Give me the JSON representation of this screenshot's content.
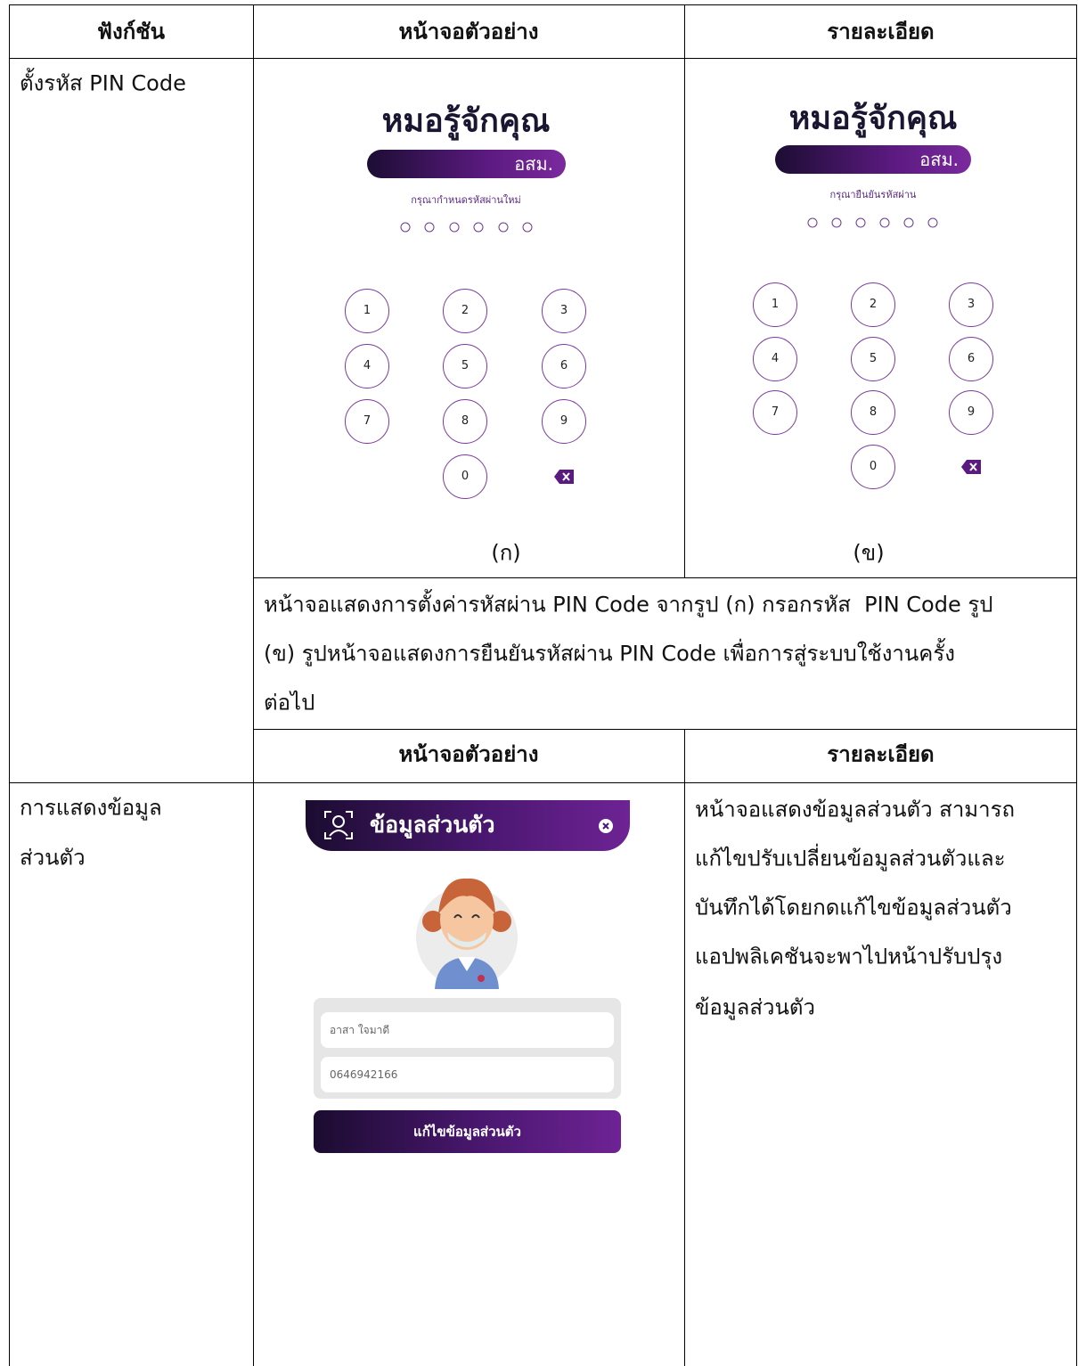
{
  "table": {
    "header": [
      "ฟังก์ชัน",
      "หน้าจอตัวอย่าง",
      "รายละเอียด"
    ],
    "rows": [
      {
        "function": "ตั้งรหัส PIN Code",
        "screens": [
          {
            "app_title": "หมอรู้จักคุณ",
            "badge": "อสม.",
            "prompt": "กรุณากำหนดรหัสผ่านใหม่",
            "keys": [
              "1",
              "2",
              "3",
              "4",
              "5",
              "6",
              "7",
              "8",
              "9",
              "0"
            ],
            "caption": "(ก)"
          },
          {
            "app_title": "หมอรู้จักคุณ",
            "badge": "อสม.",
            "prompt": "กรุณายืนยันรหัสผ่าน",
            "keys": [
              "1",
              "2",
              "3",
              "4",
              "5",
              "6",
              "7",
              "8",
              "9",
              "0"
            ],
            "caption": "(ข)"
          }
        ],
        "description_lines": [
          "หน้าจอแสดงการตั้งค่ารหัสผ่าน PIN Code จากรูป (ก) กรอกรหัส  PIN Code รูป",
          "(ข) รูปหน้าจอแสดงการยืนยันรหัสผ่าน PIN Code เพื่อการสู่ระบบใช้งานครั้ง",
          "ต่อไป"
        ],
        "subheader": [
          "หน้าจอตัวอย่าง",
          "รายละเอียด"
        ]
      },
      {
        "function_lines": [
          "การแสดงข้อมูล",
          "ส่วนตัว"
        ],
        "screen": {
          "header": "ข้อมูลส่วนตัว",
          "name": "อาสา ใจมาดี",
          "phone": "0646942166",
          "button": "แก้ไขข้อมูลส่วนตัว"
        },
        "description_lines": [
          "หน้าจอแสดงข้อมูลส่วนตัว สามารถ",
          "แก้ไขปรับเปลี่ยนข้อมูลส่วนตัวและ",
          "บันทึกได้โดยกดแก้ไขข้อมูลส่วนตัว",
          "แอปพลิเคชันจะพาไปหน้าปรับปรุง",
          "ข้อมูลส่วนตัว"
        ]
      }
    ]
  }
}
